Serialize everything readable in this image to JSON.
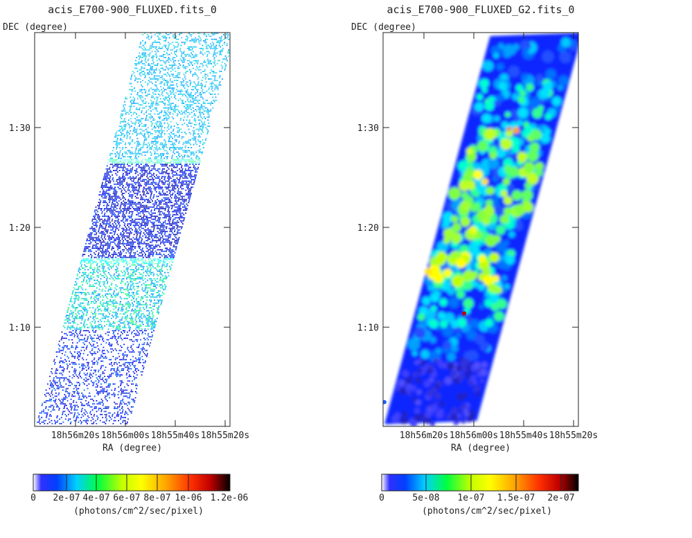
{
  "chart_data": [
    {
      "type": "heatmap",
      "title": "acis_E700-900_FLUXED.fits_0",
      "xlabel": "RA (degree)",
      "ylabel": "DEC (degree)",
      "x_ticks": [
        "18h56m20s",
        "18h56m00s",
        "18h55m40s",
        "18h55m20s"
      ],
      "y_ticks": [
        "1:10",
        "1:20",
        "1:30"
      ],
      "colorbar": {
        "label": "(photons/cm^2/sec/pixel)",
        "ticks": [
          "0",
          "2e-07",
          "4e-07",
          "6e-07",
          "8e-07",
          "1e-06",
          "1.2e-06"
        ],
        "range": [
          0,
          1.3e-06
        ]
      }
    },
    {
      "type": "heatmap",
      "title": "acis_E700-900_FLUXED_G2.fits_0",
      "xlabel": "RA (degree)",
      "ylabel": "DEC (degree)",
      "x_ticks": [
        "18h56m20s",
        "18h56m00s",
        "18h55m40s",
        "18h55m20s"
      ],
      "y_ticks": [
        "1:10",
        "1:20",
        "1:30"
      ],
      "colorbar": {
        "label": "(photons/cm^2/sec/pixel)",
        "ticks": [
          "0",
          "5e-08",
          "1e-07",
          "1.5e-07",
          "2e-07"
        ],
        "range": [
          0,
          2.2e-07
        ]
      }
    }
  ]
}
